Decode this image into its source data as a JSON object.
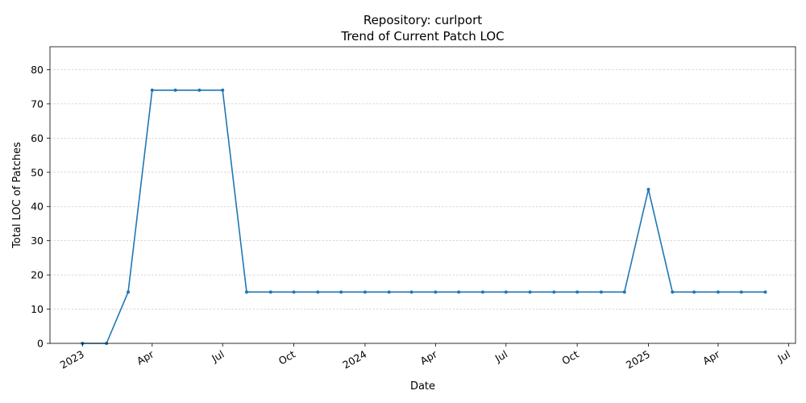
{
  "chart_data": {
    "type": "line",
    "title_line1": "Repository: curlport",
    "title_line2": "Trend of Current Patch LOC",
    "xlabel": "Date",
    "ylabel": "Total LOC of Patches",
    "ylim": [
      0,
      86.7
    ],
    "yticks": [
      0,
      10,
      20,
      30,
      40,
      50,
      60,
      70,
      80
    ],
    "xlim": [
      "2022-11-20",
      "2025-07-10"
    ],
    "xticks": [
      {
        "date": "2023-01-01",
        "label": "2023"
      },
      {
        "date": "2023-04-01",
        "label": "Apr"
      },
      {
        "date": "2023-07-01",
        "label": "Jul"
      },
      {
        "date": "2023-10-01",
        "label": "Oct"
      },
      {
        "date": "2024-01-01",
        "label": "2024"
      },
      {
        "date": "2024-04-01",
        "label": "Apr"
      },
      {
        "date": "2024-07-01",
        "label": "Jul"
      },
      {
        "date": "2024-10-01",
        "label": "Oct"
      },
      {
        "date": "2025-01-01",
        "label": "2025"
      },
      {
        "date": "2025-04-01",
        "label": "Apr"
      },
      {
        "date": "2025-07-01",
        "label": "Jul"
      }
    ],
    "grid": "y-dashed",
    "line_color": "#1f77b4",
    "series": [
      {
        "x": [
          "2023-01-01",
          "2023-02-01",
          "2023-03-01",
          "2023-04-01",
          "2023-05-01",
          "2023-06-01",
          "2023-07-01",
          "2023-08-01",
          "2023-09-01",
          "2023-10-01",
          "2023-11-01",
          "2023-12-01",
          "2024-01-01",
          "2024-02-01",
          "2024-03-01",
          "2024-04-01",
          "2024-05-01",
          "2024-06-01",
          "2024-07-01",
          "2024-08-01",
          "2024-09-01",
          "2024-10-01",
          "2024-11-01",
          "2024-12-01",
          "2025-01-01",
          "2025-02-01",
          "2025-03-01",
          "2025-04-01",
          "2025-05-01",
          "2025-06-01"
        ],
        "y": [
          0,
          0,
          15,
          74,
          74,
          74,
          74,
          15,
          15,
          15,
          15,
          15,
          15,
          15,
          15,
          15,
          15,
          15,
          15,
          15,
          15,
          15,
          15,
          15,
          45,
          15,
          15,
          15,
          15,
          15
        ]
      }
    ]
  }
}
